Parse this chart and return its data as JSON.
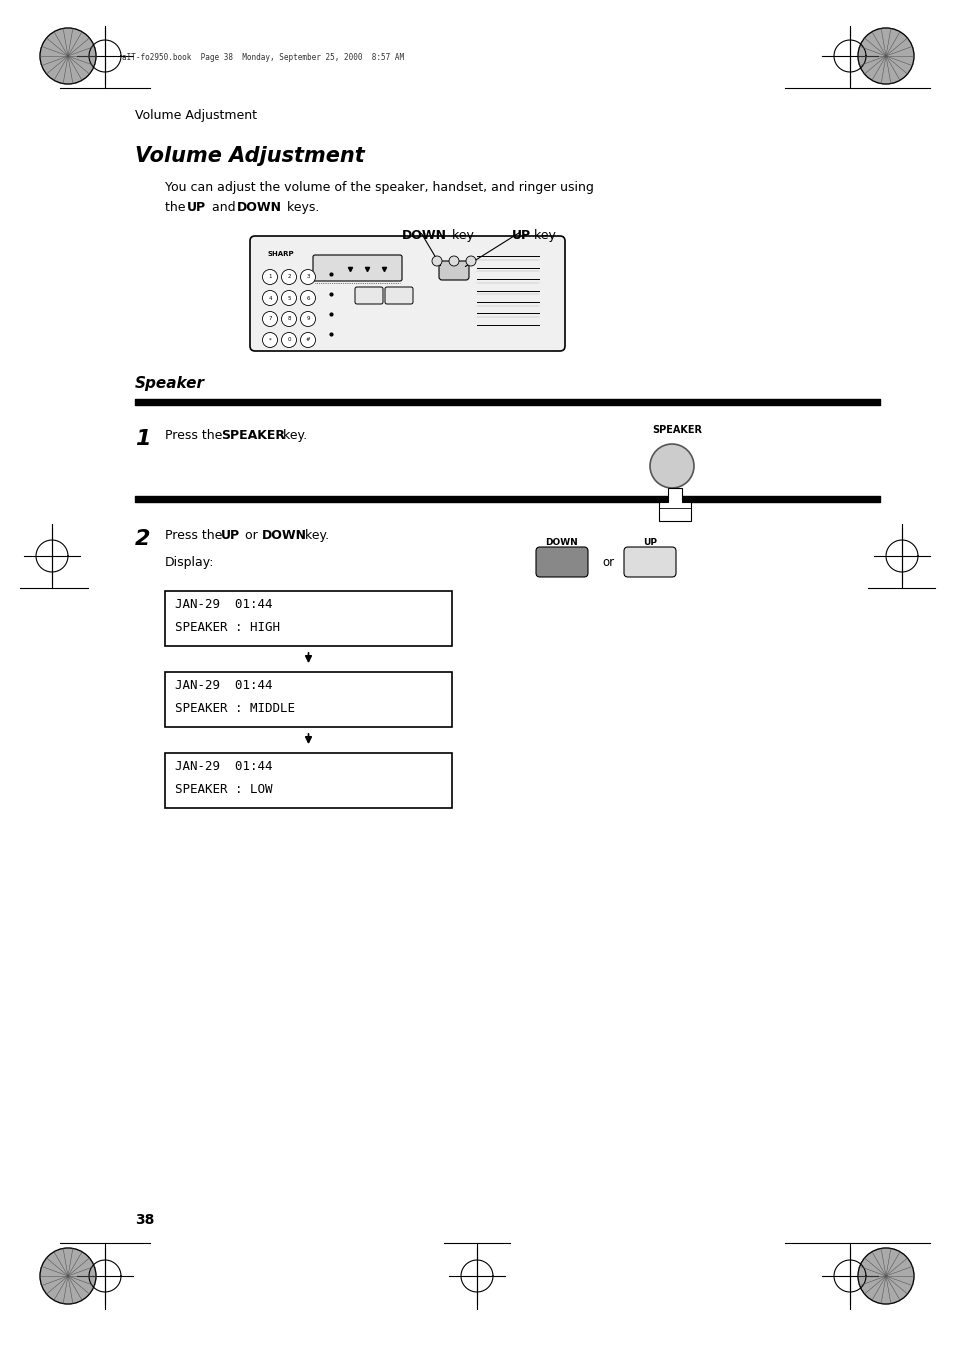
{
  "bg_color": "#ffffff",
  "page_width": 9.54,
  "page_height": 13.51,
  "header_file_text": "aIT-fo2950.book  Page 38  Monday, September 25, 2000  8:57 AM",
  "header_chapter": "Volume Adjustment",
  "title": "Volume Adjustment",
  "intro_line1": "You can adjust the volume of the speaker, handset, and ringer using",
  "intro_line2": "the UP and DOWN keys.",
  "down_key_label": "DOWN key",
  "up_key_label": "UP key",
  "speaker_section": "Speaker",
  "step1_num": "1",
  "step1_bold": "SPEAKER",
  "speaker_img_label": "SPEAKER",
  "step2_num": "2",
  "step2_bold1": "UP",
  "step2_bold2": "DOWN",
  "display_label": "Display:",
  "down_label": "DOWN",
  "up_label": "UP",
  "box1_line1": "JAN-29  01:44",
  "box1_line2": "SPEAKER : HIGH",
  "box2_line1": "JAN-29  01:44",
  "box2_line2": "SPEAKER : MIDDLE",
  "box3_line1": "JAN-29  01:44",
  "box3_line2": "SPEAKER : LOW",
  "page_num": "38"
}
